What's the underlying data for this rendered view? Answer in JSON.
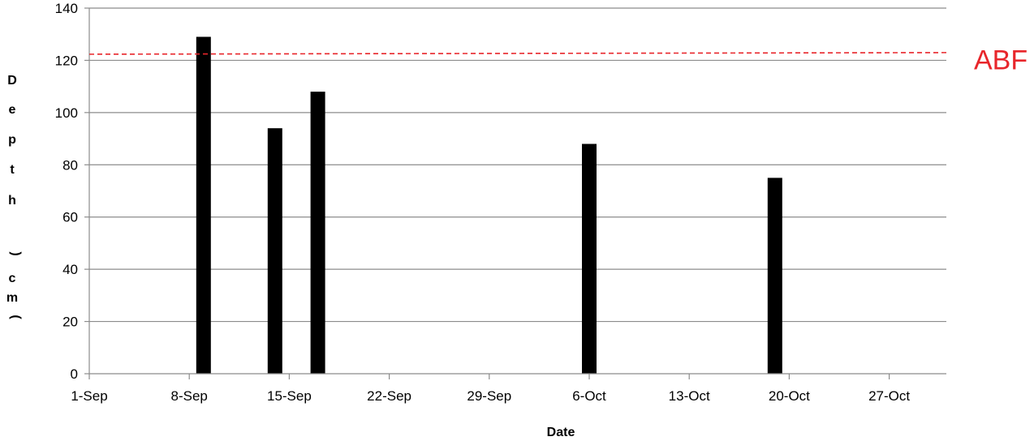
{
  "chart_data": {
    "type": "bar",
    "title": "",
    "xlabel": "Date",
    "ylabel": "Depth (cm)",
    "ylabel_letters": [
      "D",
      "e",
      "p",
      "t",
      "h",
      "",
      ")",
      "c",
      "m",
      "("
    ],
    "ylim": [
      0,
      140
    ],
    "yticks": [
      0,
      20,
      40,
      60,
      80,
      100,
      120,
      140
    ],
    "x_dates": [
      "2023-09-01",
      "2023-10-31"
    ],
    "xticks": [
      "1-Sep",
      "8-Sep",
      "15-Sep",
      "22-Sep",
      "29-Sep",
      "6-Oct",
      "13-Oct",
      "20-Oct",
      "27-Oct"
    ],
    "grid": true,
    "bar_color": "#000000",
    "series": [
      {
        "x": [
          "2023-09-09",
          "2023-09-14",
          "2023-09-17",
          "2023-10-06",
          "2023-10-19"
        ],
        "values": [
          129,
          94,
          108,
          88,
          75
        ]
      }
    ],
    "reference_line": {
      "label": "ABF",
      "value": 122.5,
      "color": "#e8262b"
    }
  }
}
